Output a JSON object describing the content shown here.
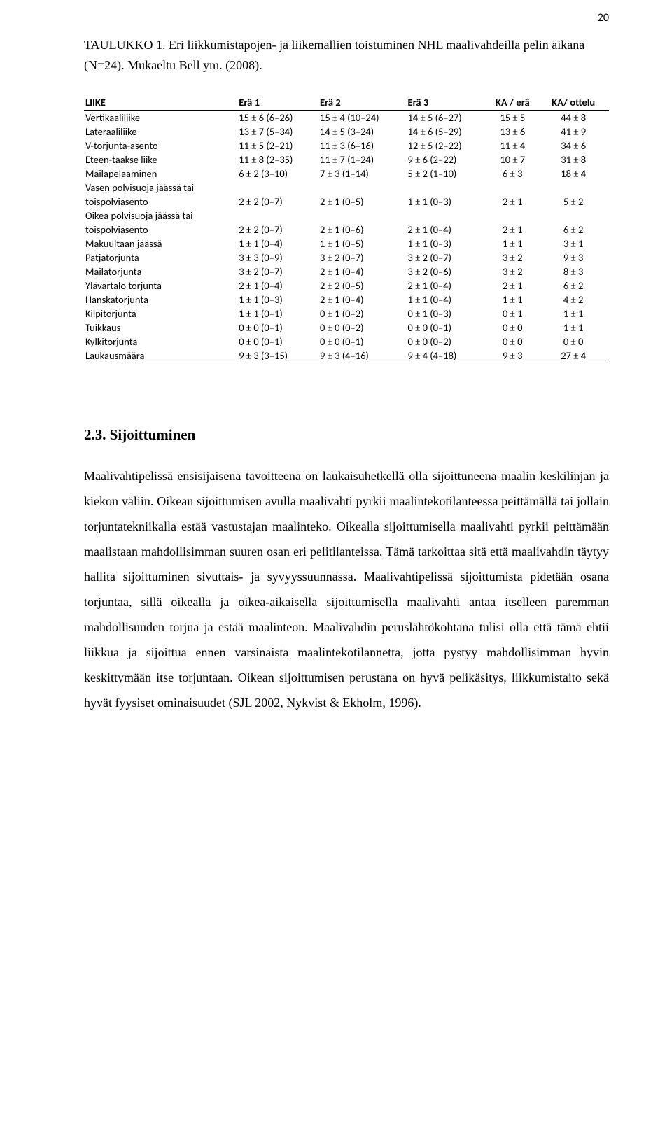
{
  "page_number": "20",
  "caption": "TAULUKKO 1. Eri liikkumistapojen- ja liikemallien toistuminen NHL maalivahdeilla pelin aikana (N=24). Mukaeltu Bell ym. (2008).",
  "table": {
    "type": "table",
    "column_headers": [
      "LIIKE",
      "Erä 1",
      "Erä 2",
      "Erä 3",
      "KA / erä",
      "KA/ ottelu"
    ],
    "rows": [
      [
        "Vertikaaliliike",
        "15 ± 6 (6–26)",
        "15 ± 4 (10–24)",
        "14 ± 5 (6–27)",
        "15 ± 5",
        "44 ± 8"
      ],
      [
        "Lateraaliliike",
        "13 ± 7 (5–34)",
        "14 ± 5 (3–24)",
        "14 ± 6 (5–29)",
        "13 ± 6",
        "41 ± 9"
      ],
      [
        "V-torjunta-asento",
        "11 ± 5 (2–21)",
        "11 ± 3 (6–16)",
        "12 ± 5 (2–22)",
        "11 ± 4",
        "34 ± 6"
      ],
      [
        "Eteen-taakse liike",
        "11 ± 8 (2–35)",
        "11 ± 7 (1–24)",
        "9 ± 6 (2–22)",
        "10 ± 7",
        "31 ± 8"
      ],
      [
        "Mailapelaaminen",
        "6 ± 2 (3–10)",
        "7 ± 3 (1–14)",
        "5 ± 2 (1–10)",
        "6 ± 3",
        "18 ± 4"
      ],
      [
        "Vasen polvisuoja jäässä tai toispolviasento",
        "2 ± 2 (0–7)",
        "2 ± 1 (0–5)",
        "1 ± 1 (0–3)",
        "2 ± 1",
        "5 ± 2"
      ],
      [
        "Oikea polvisuoja jäässä tai toispolviasento",
        "2 ± 2 (0–7)",
        "2 ± 1 (0–6)",
        "2 ± 1 (0–4)",
        "2 ± 1",
        "6 ± 2"
      ],
      [
        "Makuultaan jäässä",
        "1 ± 1 (0–4)",
        "1 ± 1 (0–5)",
        "1 ± 1 (0–3)",
        "1 ± 1",
        "3 ± 1"
      ],
      [
        "Patjatorjunta",
        "3 ± 3 (0–9)",
        "3 ± 2 (0–7)",
        "3 ± 2 (0–7)",
        "3 ± 2",
        "9 ± 3"
      ],
      [
        "Mailatorjunta",
        "3 ± 2 (0–7)",
        "2 ± 1 (0–4)",
        "3 ± 2 (0–6)",
        "3 ± 2",
        "8 ± 3"
      ],
      [
        "Ylävartalo torjunta",
        "2 ± 1 (0–4)",
        "2 ± 2 (0–5)",
        "2 ± 1 (0–4)",
        "2 ± 1",
        "6 ± 2"
      ],
      [
        "Hanskatorjunta",
        "1 ± 1 (0–3)",
        "2 ± 1 (0–4)",
        "1 ± 1 (0–4)",
        "1 ± 1",
        "4 ± 2"
      ],
      [
        "Kilpitorjunta",
        "1 ± 1 (0–1)",
        "0 ± 1 (0–2)",
        "0 ± 1 (0–3)",
        "0 ± 1",
        "1 ± 1"
      ],
      [
        "Tuikkaus",
        "0 ± 0 (0–1)",
        "0 ± 0 (0–2)",
        "0 ± 0 (0–1)",
        "0 ± 0",
        "1 ± 1"
      ],
      [
        "Kylkitorjunta",
        "0 ± 0 (0–1)",
        "0 ± 0 (0–1)",
        "0 ± 0 (0–2)",
        "0 ± 0",
        "0 ± 0"
      ],
      [
        "Laukausmäärä",
        "9 ± 3 (3–15)",
        "9 ± 3 (4–16)",
        "9 ± 4 (4–18)",
        "9 ± 3",
        "27 ± 4"
      ]
    ],
    "split_rows": [
      5,
      6
    ],
    "split_parts": {
      "5": [
        "Vasen polvisuoja jäässä tai",
        "toispolviasento"
      ],
      "6": [
        "Oikea polvisuoja jäässä tai",
        "toispolviasento"
      ]
    },
    "text_color": "#000000",
    "border_color": "#000000",
    "background": "#ffffff",
    "fontsize": 14.5,
    "header_fontweight": "bold"
  },
  "section": {
    "heading": "2.3. Sijoittuminen",
    "body": "Maalivahtipelissä ensisijaisena tavoitteena on laukaisuhetkellä olla sijoittuneena maalin keskilinjan ja kiekon väliin. Oikean sijoittumisen avulla maalivahti pyrkii maalintekotilanteessa peittämällä tai jollain torjuntatekniikalla estää vastustajan maalinteko. Oikealla sijoittumisella maalivahti pyrkii peittämään maalistaan mahdollisimman suuren osan eri pelitilanteissa. Tämä tarkoittaa sitä että maalivahdin täytyy hallita sijoittuminen sivuttais- ja syvyyssuunnassa. Maalivahtipelissä sijoittumista pidetään osana torjuntaa, sillä oikealla ja oikea-aikaisella sijoittumisella maalivahti antaa itselleen paremman mahdollisuuden torjua ja estää maalinteon. Maalivahdin peruslähtökohtana tulisi olla että tämä ehtii liikkua ja sijoittua ennen varsinaista maalintekotilannetta, jotta pystyy mahdollisimman hyvin keskittymään itse torjuntaan. Oikean sijoittumisen perustana on hyvä pelikäsitys, liikkumistaito sekä hyvät fyysiset ominaisuudet (SJL 2002, Nykvist & Ekholm, 1996)."
  }
}
